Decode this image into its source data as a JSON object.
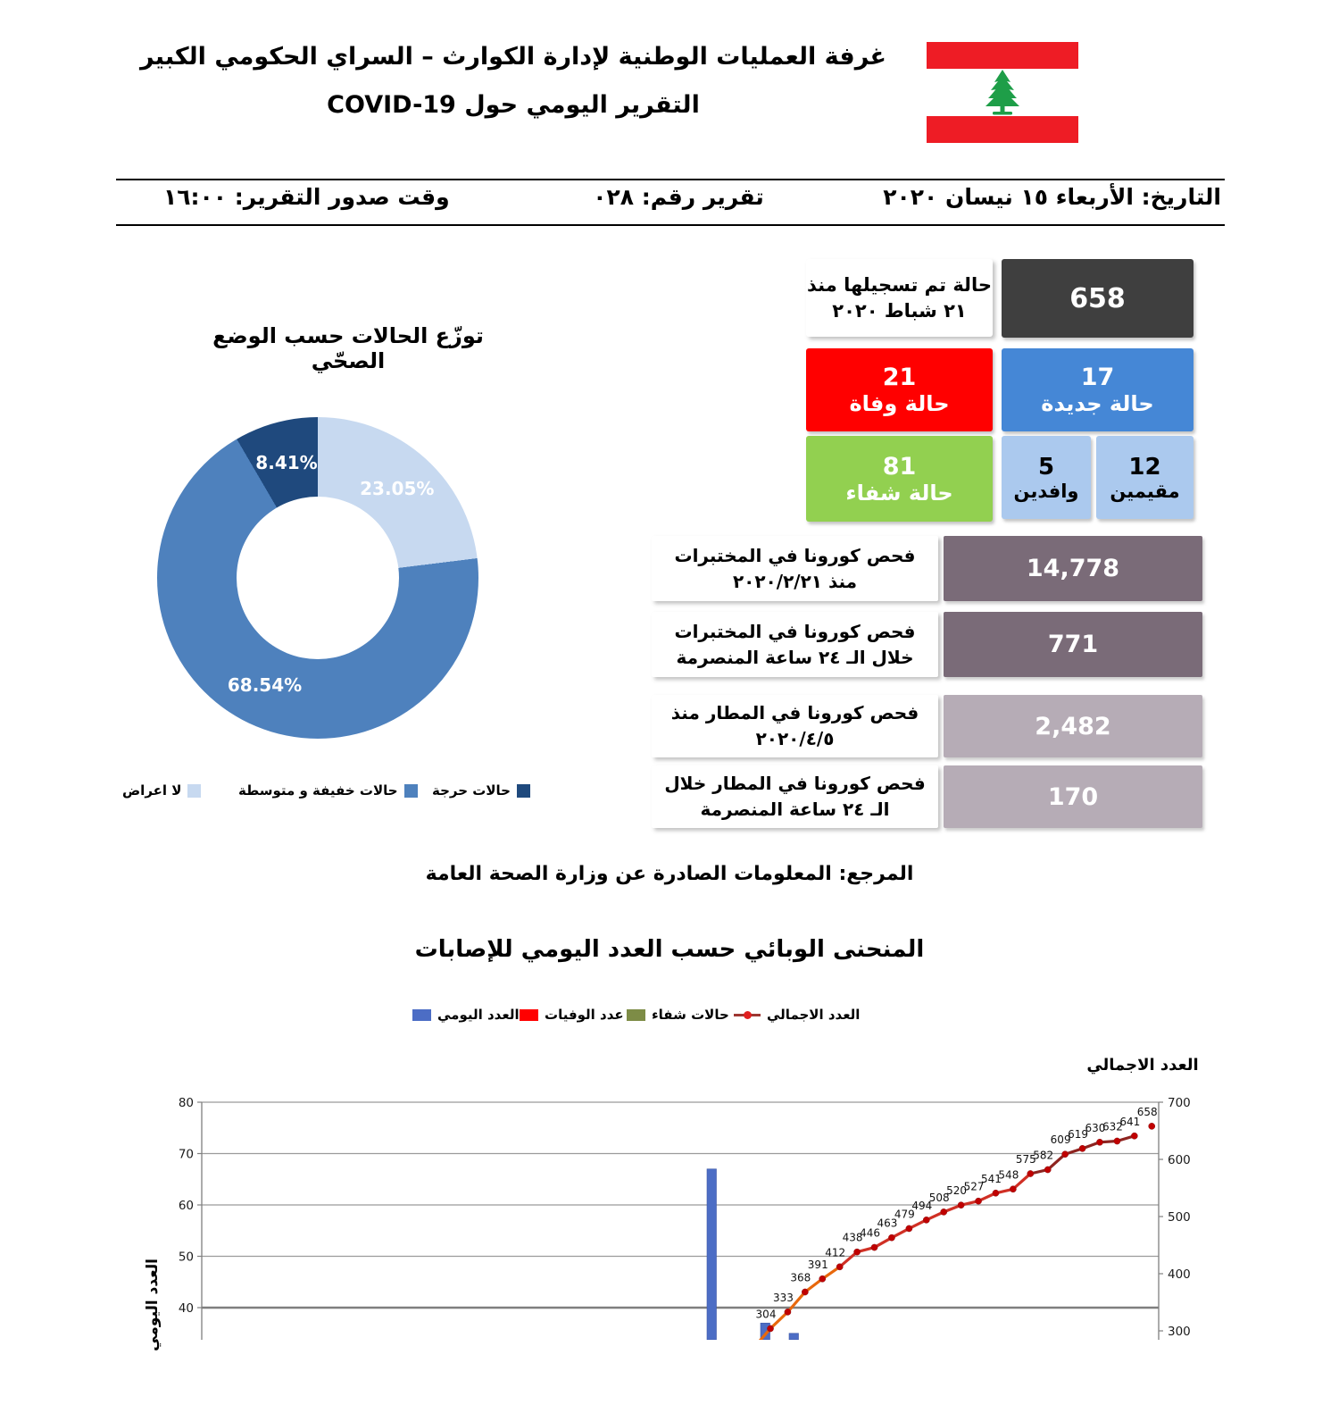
{
  "header": {
    "title_line1": "غرفة العمليات الوطنية لإدارة الكوارث – السراي الحكومي الكبير",
    "title_line2": "التقرير اليومي حول COVID-19",
    "flag": {
      "name": "lebanon-flag",
      "red": "#EE1C25",
      "green": "#1E9E48"
    }
  },
  "meta_bar": {
    "date": "التاريخ: الأربعاء ١٥ نيسان ٢٠٢٠",
    "report_number": "تقرير رقم: ٠٢٨",
    "issue_time": "وقت صدور التقرير: ١٦:٠٠"
  },
  "summary_cards": {
    "total": {
      "value": "658",
      "label_line1": "حالة تم تسجيلها منذ",
      "label_line2": "٢١ شباط ٢٠٢٠",
      "color": "#3F3F3F"
    },
    "new_cases": {
      "value": "17",
      "label": "حالة جديدة",
      "color": "#4587D6"
    },
    "deaths": {
      "value": "21",
      "label": "حالة وفاة",
      "color": "#FF0000"
    },
    "recovered": {
      "value": "81",
      "label": "حالة شفاء",
      "color": "#92D050"
    },
    "arrivals": {
      "value": "5",
      "label": "وافدين",
      "color": "#ABC9EE"
    },
    "residents": {
      "value": "12",
      "label": "مقيمين",
      "color": "#ABC9EE"
    }
  },
  "test_rows": [
    {
      "label": "فحص كورونا في المختبرات منذ ٢٠٢٠/٢/٢١",
      "value": "14,778",
      "color": "#7A6B78"
    },
    {
      "label": "فحص كورونا في المختبرات خلال الـ ٢٤ ساعة المنصرمة",
      "value": "771",
      "color": "#7A6B78"
    },
    {
      "label": "فحص كورونا في المطار منذ ٢٠٢٠/٤/٥",
      "value": "2,482",
      "color": "#B6ACB6"
    },
    {
      "label": "فحص كورونا في المطار خلال الـ ٢٤ ساعة المنصرمة",
      "value": "170",
      "color": "#B6ACB6"
    }
  ],
  "reference_note": "المرجع: المعلومات الصادرة عن وزارة الصحة العامة",
  "chart_data": [
    {
      "type": "pie",
      "title": "توزّع الحالات حسب الوضع الصحّي",
      "labels": [
        "لا اعراض",
        "حالات خفيفة و متوسطة",
        "حالات حرجة"
      ],
      "values": [
        23.05,
        68.54,
        8.41
      ],
      "value_labels": [
        "23.05%",
        "68.54%",
        "8.41%"
      ],
      "colors": [
        "#C7D9F0",
        "#4E81BD",
        "#1F497D"
      ],
      "donut_hole_ratio": 0.505,
      "legend_position": "bottom"
    },
    {
      "type": "combo-bar-line",
      "title": "المنحنى الوبائي حسب العدد اليومي للإصابات",
      "legend": [
        {
          "label": "العدد اليومي",
          "kind": "bar",
          "color": "#4C6DC5"
        },
        {
          "label": "عدد الوفيات",
          "kind": "bar",
          "color": "#FF0000"
        },
        {
          "label": "حالات شفاء",
          "kind": "bar",
          "color": "#7D8C46"
        },
        {
          "label": "العدد الاجمالي",
          "kind": "line",
          "color": "#C00000",
          "line_color": "#9E3732",
          "marker_color": "#E02020"
        }
      ],
      "left_axis": {
        "title": "العدد اليومي",
        "visible_ticks": [
          80,
          70,
          60,
          50,
          40
        ]
      },
      "right_axis": {
        "title": "العدد الاجمالي",
        "visible_ticks": [
          700,
          600,
          500,
          400,
          300
        ]
      },
      "series": [
        {
          "name": "العدد الاجمالي",
          "type": "line",
          "axis": "right",
          "marker_color": "#C00000",
          "segment_colors": [
            "#E8680C",
            "#D03025",
            "#8E2420"
          ],
          "values": [
            304,
            333,
            368,
            391,
            412,
            438,
            446,
            463,
            479,
            494,
            508,
            520,
            527,
            541,
            548,
            575,
            582,
            609,
            619,
            630,
            632,
            641,
            658
          ]
        },
        {
          "name": "العدد اليومي",
          "type": "bar",
          "axis": "left",
          "color": "#4C6DC5",
          "visible_values": [
            67,
            37,
            35
          ]
        }
      ],
      "note": "lower part of chart cut off at screenshot edge"
    }
  ]
}
